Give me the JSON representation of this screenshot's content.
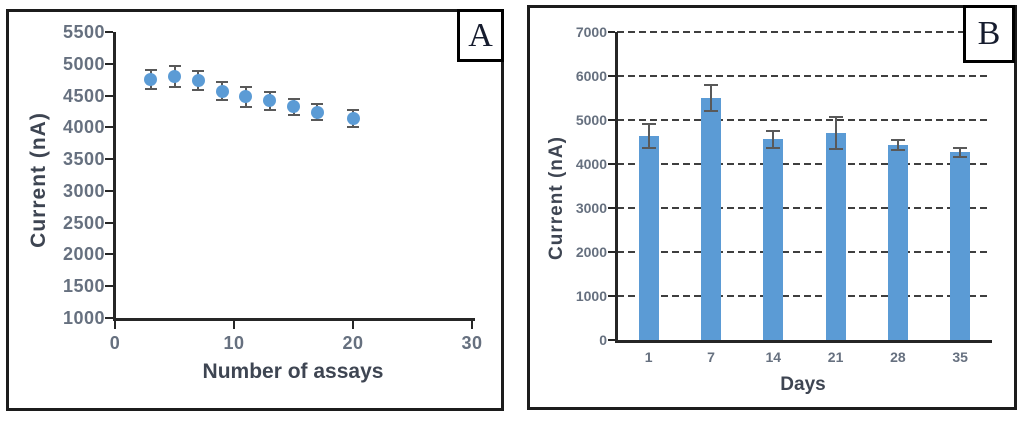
{
  "figure": {
    "background": "#ffffff",
    "panel_count": 2
  },
  "style": {
    "axis_color": "#262626",
    "tick_label_color": "#66707f",
    "title_color": "#3e4552",
    "series_blue": "#5b9bd5",
    "error_bar_color": "#595959",
    "gridline_color": "#3f3f3f"
  },
  "chart_data": [
    {
      "panel_label": "A",
      "type": "scatter",
      "xlabel": "Number of assays",
      "ylabel": "Current (nA)",
      "x": [
        3,
        5,
        7,
        9,
        11,
        13,
        15,
        17,
        20
      ],
      "y": [
        4750,
        4800,
        4740,
        4570,
        4480,
        4420,
        4320,
        4240,
        4140
      ],
      "y_err": [
        150,
        160,
        150,
        140,
        160,
        140,
        130,
        130,
        130
      ],
      "xlim": [
        0,
        30
      ],
      "ylim": [
        1000,
        5500
      ],
      "xticks": [
        0,
        10,
        20,
        30
      ],
      "yticks": [
        1000,
        1500,
        2000,
        2500,
        3000,
        3500,
        4000,
        4500,
        5000,
        5500
      ],
      "grid": false,
      "legend": null,
      "marker_color": "#5b9bd5",
      "error_color": "#595959"
    },
    {
      "panel_label": "B",
      "type": "bar",
      "xlabel": "Days",
      "ylabel": "Current (nA)",
      "categories": [
        "1",
        "7",
        "14",
        "21",
        "28",
        "35"
      ],
      "values": [
        4640,
        5500,
        4560,
        4700,
        4430,
        4270
      ],
      "y_err": [
        270,
        300,
        190,
        370,
        110,
        100
      ],
      "ylim": [
        0,
        7000
      ],
      "yticks": [
        0,
        1000,
        2000,
        3000,
        4000,
        5000,
        6000,
        7000
      ],
      "grid": true,
      "grid_style": "dashed",
      "legend": null,
      "bar_color": "#5b9bd5",
      "error_color": "#595959"
    }
  ]
}
